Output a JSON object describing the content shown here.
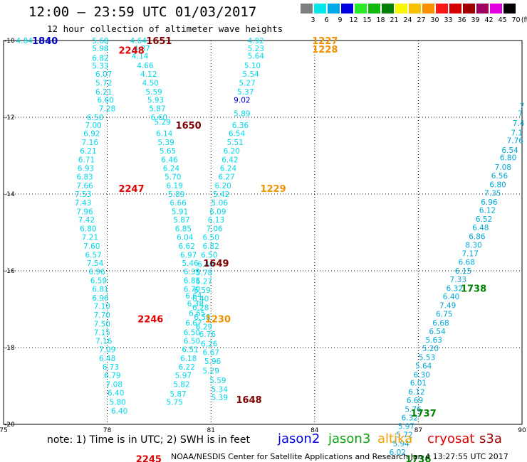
{
  "header": {
    "title": "12:00 – 23:59 UTC 01/03/2017",
    "subtitle": "12 hour collection of altimeter wave heights"
  },
  "legend": {
    "unit": "(ft)",
    "items": [
      {
        "label": "3",
        "color": "#808080"
      },
      {
        "label": "6",
        "color": "#00e8e8"
      },
      {
        "label": "9",
        "color": "#00a8e8"
      },
      {
        "label": "12",
        "color": "#0000e0"
      },
      {
        "label": "15",
        "color": "#28e828"
      },
      {
        "label": "18",
        "color": "#10b810"
      },
      {
        "label": "21",
        "color": "#008000"
      },
      {
        "label": "24",
        "color": "#f8f800"
      },
      {
        "label": "27",
        "color": "#f8c000"
      },
      {
        "label": "30",
        "color": "#f89000"
      },
      {
        "label": "33",
        "color": "#f81818"
      },
      {
        "label": "36",
        "color": "#d00000"
      },
      {
        "label": "39",
        "color": "#a00000"
      },
      {
        "label": "42",
        "color": "#a00060"
      },
      {
        "label": "45",
        "color": "#e000e0"
      },
      {
        "label": "70",
        "color": "#000000"
      }
    ]
  },
  "axes": {
    "x_ticks": [
      "75",
      "78",
      "81",
      "84",
      "87",
      "90"
    ],
    "y_ticks": [
      "-10",
      "-12",
      "-14",
      "-16",
      "-18",
      "-20"
    ]
  },
  "tracks": [
    {
      "satellite": "altika",
      "color": "#00d8e8",
      "points": [
        {
          "x": 75.6,
          "y": -10.0,
          "v": "4.84"
        }
      ]
    },
    {
      "satellite": "altika",
      "color": "#00d8e8",
      "points": [
        {
          "x": 77.8,
          "y": -10.0,
          "v": "5.68"
        },
        {
          "x": 77.8,
          "y": -10.2,
          "v": "5.98"
        },
        {
          "x": 77.8,
          "y": -10.45,
          "v": "6.82"
        },
        {
          "x": 77.8,
          "y": -10.66,
          "v": "5.33"
        },
        {
          "x": 77.9,
          "y": -10.87,
          "v": "6.07"
        },
        {
          "x": 77.9,
          "y": -11.1,
          "v": "5.72"
        },
        {
          "x": 77.9,
          "y": -11.33,
          "v": "6.21"
        },
        {
          "x": 77.95,
          "y": -11.55,
          "v": "6.60"
        },
        {
          "x": 78.0,
          "y": -11.77,
          "v": "7.28"
        },
        {
          "x": 77.65,
          "y": -12.0,
          "v": "6.50"
        },
        {
          "x": 77.6,
          "y": -12.2,
          "v": "7.00"
        },
        {
          "x": 77.55,
          "y": -12.42,
          "v": "6.92"
        },
        {
          "x": 77.5,
          "y": -12.65,
          "v": "7.16"
        },
        {
          "x": 77.45,
          "y": -12.87,
          "v": "6.21"
        },
        {
          "x": 77.4,
          "y": -13.1,
          "v": "6.71"
        },
        {
          "x": 77.38,
          "y": -13.32,
          "v": "6.93"
        },
        {
          "x": 77.35,
          "y": -13.55,
          "v": "6.83"
        },
        {
          "x": 77.35,
          "y": -13.78,
          "v": "7.66"
        },
        {
          "x": 77.3,
          "y": -14.0,
          "v": "7.53"
        },
        {
          "x": 77.3,
          "y": -14.22,
          "v": "7.43"
        },
        {
          "x": 77.35,
          "y": -14.45,
          "v": "7.96"
        },
        {
          "x": 77.4,
          "y": -14.67,
          "v": "7.42"
        },
        {
          "x": 77.45,
          "y": -14.9,
          "v": "6.80"
        },
        {
          "x": 77.5,
          "y": -15.12,
          "v": "7.21"
        },
        {
          "x": 77.55,
          "y": -15.35,
          "v": "7.60"
        },
        {
          "x": 77.6,
          "y": -15.58,
          "v": "6.57"
        },
        {
          "x": 77.65,
          "y": -15.8,
          "v": "7.54"
        },
        {
          "x": 77.7,
          "y": -16.02,
          "v": "6.96"
        },
        {
          "x": 77.75,
          "y": -16.25,
          "v": "6.59"
        },
        {
          "x": 77.8,
          "y": -16.47,
          "v": "6.81"
        },
        {
          "x": 77.8,
          "y": -16.7,
          "v": "6.96"
        },
        {
          "x": 77.85,
          "y": -16.92,
          "v": "7.10"
        },
        {
          "x": 77.85,
          "y": -17.15,
          "v": "7.70"
        },
        {
          "x": 77.85,
          "y": -17.38,
          "v": "7.50"
        },
        {
          "x": 77.85,
          "y": -17.6,
          "v": "7.15"
        },
        {
          "x": 77.9,
          "y": -17.82,
          "v": "7.16"
        },
        {
          "x": 78.0,
          "y": -18.05,
          "v": "7.09"
        },
        {
          "x": 78.0,
          "y": -18.28,
          "v": "6.48"
        },
        {
          "x": 78.1,
          "y": -18.5,
          "v": "6.73"
        },
        {
          "x": 78.15,
          "y": -18.72,
          "v": "6.79"
        },
        {
          "x": 78.2,
          "y": -18.95,
          "v": "7.08"
        },
        {
          "x": 78.25,
          "y": -19.18,
          "v": "6.40"
        },
        {
          "x": 78.3,
          "y": -19.42,
          "v": "5.80"
        },
        {
          "x": 78.35,
          "y": -19.65,
          "v": "6.40"
        }
      ]
    },
    {
      "satellite": "altika",
      "color": "#00d8e8",
      "points": [
        {
          "x": 78.9,
          "y": -10.0,
          "v": "4.64"
        },
        {
          "x": 79.0,
          "y": -10.2,
          "v": "4.87"
        },
        {
          "x": 78.95,
          "y": -10.4,
          "v": "4.14"
        },
        {
          "x": 79.1,
          "y": -10.65,
          "v": "4.66"
        },
        {
          "x": 79.2,
          "y": -10.87,
          "v": "4.12"
        },
        {
          "x": 79.25,
          "y": -11.1,
          "v": "4.50"
        },
        {
          "x": 79.35,
          "y": -11.33,
          "v": "5.59"
        },
        {
          "x": 79.4,
          "y": -11.55,
          "v": "5.93"
        },
        {
          "x": 79.45,
          "y": -11.77,
          "v": "5.87"
        },
        {
          "x": 79.5,
          "y": -12.0,
          "v": "6.60"
        },
        {
          "x": 79.6,
          "y": -12.12,
          "v": "5.29"
        },
        {
          "x": 79.65,
          "y": -12.42,
          "v": "6.14"
        },
        {
          "x": 79.7,
          "y": -12.65,
          "v": "5.39"
        },
        {
          "x": 79.75,
          "y": -12.87,
          "v": "5.65"
        },
        {
          "x": 79.8,
          "y": -13.1,
          "v": "6.46"
        },
        {
          "x": 79.85,
          "y": -13.32,
          "v": "6.24"
        },
        {
          "x": 79.9,
          "y": -13.55,
          "v": "5.70"
        },
        {
          "x": 79.95,
          "y": -13.78,
          "v": "6.19"
        },
        {
          "x": 80.0,
          "y": -14.0,
          "v": "5.89"
        },
        {
          "x": 80.05,
          "y": -14.22,
          "v": "6.66"
        },
        {
          "x": 80.1,
          "y": -14.45,
          "v": "5.91"
        },
        {
          "x": 80.15,
          "y": -14.67,
          "v": "5.87"
        },
        {
          "x": 80.2,
          "y": -14.9,
          "v": "6.85"
        },
        {
          "x": 80.25,
          "y": -15.12,
          "v": "6.04"
        },
        {
          "x": 80.3,
          "y": -15.35,
          "v": "6.62"
        },
        {
          "x": 80.35,
          "y": -15.58,
          "v": "6.97"
        },
        {
          "x": 80.4,
          "y": -15.8,
          "v": "5.46"
        },
        {
          "x": 80.45,
          "y": -16.02,
          "v": "6.39"
        },
        {
          "x": 80.45,
          "y": -16.25,
          "v": "6.85"
        },
        {
          "x": 80.45,
          "y": -16.47,
          "v": "6.70"
        },
        {
          "x": 80.5,
          "y": -16.65,
          "v": "6.64"
        },
        {
          "x": 80.55,
          "y": -16.85,
          "v": "6.38"
        },
        {
          "x": 80.6,
          "y": -17.1,
          "v": "6.65"
        },
        {
          "x": 80.5,
          "y": -17.35,
          "v": "6.67"
        },
        {
          "x": 80.45,
          "y": -17.6,
          "v": "6.50"
        },
        {
          "x": 80.45,
          "y": -17.82,
          "v": "6.50"
        },
        {
          "x": 80.4,
          "y": -18.05,
          "v": "6.51"
        },
        {
          "x": 80.35,
          "y": -18.28,
          "v": "6.18"
        },
        {
          "x": 80.3,
          "y": -18.5,
          "v": "6.22"
        },
        {
          "x": 80.2,
          "y": -18.72,
          "v": "5.97"
        },
        {
          "x": 80.15,
          "y": -18.95,
          "v": "5.82"
        },
        {
          "x": 80.05,
          "y": -19.2,
          "v": "5.87"
        },
        {
          "x": 79.95,
          "y": -19.42,
          "v": "5.75"
        }
      ]
    },
    {
      "satellite": "altika",
      "color": "#00d8e8",
      "points": [
        {
          "x": 82.3,
          "y": -10.0,
          "v": "4.92"
        },
        {
          "x": 82.3,
          "y": -10.2,
          "v": "5.23"
        },
        {
          "x": 82.3,
          "y": -10.4,
          "v": "5.64"
        },
        {
          "x": 82.2,
          "y": -10.65,
          "v": "5.10"
        },
        {
          "x": 82.15,
          "y": -10.87,
          "v": "5.54"
        },
        {
          "x": 82.05,
          "y": -11.1,
          "v": "5.27"
        },
        {
          "x": 82.0,
          "y": -11.33,
          "v": "5.37"
        },
        {
          "x": 81.9,
          "y": -11.55,
          "v": "9.02",
          "c": "#0000d0"
        },
        {
          "x": 81.9,
          "y": -11.9,
          "v": "5.89"
        },
        {
          "x": 81.85,
          "y": -12.2,
          "v": "6.36"
        },
        {
          "x": 81.75,
          "y": -12.42,
          "v": "6.54"
        },
        {
          "x": 81.7,
          "y": -12.65,
          "v": "5.51"
        },
        {
          "x": 81.6,
          "y": -12.87,
          "v": "6.20"
        },
        {
          "x": 81.55,
          "y": -13.1,
          "v": "6.42"
        },
        {
          "x": 81.5,
          "y": -13.32,
          "v": "6.24"
        },
        {
          "x": 81.45,
          "y": -13.55,
          "v": "6.27"
        },
        {
          "x": 81.35,
          "y": -13.78,
          "v": "6.20"
        },
        {
          "x": 81.3,
          "y": -14.0,
          "v": "5.42"
        },
        {
          "x": 81.25,
          "y": -14.22,
          "v": "5.06"
        },
        {
          "x": 81.2,
          "y": -14.45,
          "v": "6.09"
        },
        {
          "x": 81.15,
          "y": -14.67,
          "v": "6.13"
        },
        {
          "x": 81.1,
          "y": -14.9,
          "v": "7.06"
        },
        {
          "x": 81.0,
          "y": -15.12,
          "v": "6.50"
        },
        {
          "x": 81.0,
          "y": -15.35,
          "v": "6.82"
        },
        {
          "x": 80.95,
          "y": -15.58,
          "v": "6.50"
        },
        {
          "x": 80.85,
          "y": -15.82,
          "v": "6.40"
        },
        {
          "x": 80.8,
          "y": -16.05,
          "v": "5.78"
        },
        {
          "x": 80.8,
          "y": -16.27,
          "v": "6.27"
        },
        {
          "x": 80.75,
          "y": -16.5,
          "v": "6.59"
        },
        {
          "x": 80.7,
          "y": -16.72,
          "v": "6.40"
        },
        {
          "x": 80.7,
          "y": -16.95,
          "v": "6.28"
        },
        {
          "x": 80.75,
          "y": -17.2,
          "v": "6.58"
        },
        {
          "x": 80.8,
          "y": -17.45,
          "v": "6.29"
        },
        {
          "x": 80.9,
          "y": -17.65,
          "v": "6.76"
        },
        {
          "x": 80.95,
          "y": -17.9,
          "v": "6.26"
        },
        {
          "x": 81.0,
          "y": -18.12,
          "v": "6.67"
        },
        {
          "x": 81.05,
          "y": -18.35,
          "v": "5.96"
        },
        {
          "x": 81.0,
          "y": -18.6,
          "v": "5.29"
        },
        {
          "x": 81.2,
          "y": -18.85,
          "v": "5.59"
        },
        {
          "x": 81.25,
          "y": -19.08,
          "v": "5.34"
        },
        {
          "x": 81.25,
          "y": -19.3,
          "v": "5.39"
        }
      ]
    },
    {
      "satellite": "altika",
      "color": "#00a8d8",
      "points": [
        {
          "x": 90.0,
          "y": -11.7,
          "v": "7"
        },
        {
          "x": 89.95,
          "y": -11.9,
          "v": "7"
        },
        {
          "x": 89.9,
          "y": -12.15,
          "v": "7.4"
        },
        {
          "x": 89.85,
          "y": -12.4,
          "v": "7.1"
        },
        {
          "x": 89.8,
          "y": -12.6,
          "v": "7.76"
        },
        {
          "x": 89.65,
          "y": -12.85,
          "v": "6.54"
        },
        {
          "x": 89.6,
          "y": -13.05,
          "v": "6.80"
        },
        {
          "x": 89.45,
          "y": -13.3,
          "v": "7.08"
        },
        {
          "x": 89.35,
          "y": -13.52,
          "v": "6.56"
        },
        {
          "x": 89.3,
          "y": -13.75,
          "v": "6.80"
        },
        {
          "x": 89.15,
          "y": -13.97,
          "v": "7.35"
        },
        {
          "x": 89.05,
          "y": -14.2,
          "v": "6.96"
        },
        {
          "x": 89.0,
          "y": -14.42,
          "v": "6.12"
        },
        {
          "x": 88.9,
          "y": -14.65,
          "v": "6.52"
        },
        {
          "x": 88.8,
          "y": -14.87,
          "v": "6.48"
        },
        {
          "x": 88.7,
          "y": -15.1,
          "v": "6.86"
        },
        {
          "x": 88.6,
          "y": -15.32,
          "v": "8.30"
        },
        {
          "x": 88.5,
          "y": -15.55,
          "v": "7.17"
        },
        {
          "x": 88.4,
          "y": -15.77,
          "v": "6.68"
        },
        {
          "x": 88.3,
          "y": -16.0,
          "v": "6.15"
        },
        {
          "x": 88.15,
          "y": -16.22,
          "v": "7.33"
        },
        {
          "x": 88.05,
          "y": -16.45,
          "v": "6.32"
        },
        {
          "x": 87.95,
          "y": -16.67,
          "v": "6.40"
        },
        {
          "x": 87.85,
          "y": -16.9,
          "v": "7.49"
        },
        {
          "x": 87.75,
          "y": -17.12,
          "v": "6.75"
        },
        {
          "x": 87.65,
          "y": -17.35,
          "v": "6.68"
        },
        {
          "x": 87.55,
          "y": -17.57,
          "v": "6.54"
        },
        {
          "x": 87.45,
          "y": -17.8,
          "v": "5.63"
        },
        {
          "x": 87.35,
          "y": -18.02,
          "v": "5.20"
        },
        {
          "x": 87.25,
          "y": -18.25,
          "v": "5.53"
        },
        {
          "x": 87.15,
          "y": -18.47,
          "v": "5.64"
        },
        {
          "x": 87.1,
          "y": -18.7,
          "v": "6.30"
        },
        {
          "x": 87.0,
          "y": -18.92,
          "v": "6.01"
        },
        {
          "x": 86.95,
          "y": -19.15,
          "v": "6.12"
        },
        {
          "x": 86.9,
          "y": -19.37,
          "v": "6.69"
        },
        {
          "x": 86.85,
          "y": -19.6,
          "v": "5.76"
        },
        {
          "x": 86.75,
          "y": -19.82,
          "v": "6.32"
        },
        {
          "x": 86.65,
          "y": -20.05,
          "v": "5.97"
        },
        {
          "x": 86.6,
          "y": -20.27,
          "v": "5.72"
        },
        {
          "x": 86.5,
          "y": -20.5,
          "v": "5.94"
        },
        {
          "x": 86.4,
          "y": -20.72,
          "v": "6.02"
        }
      ]
    }
  ],
  "time_labels": [
    {
      "x": 76.2,
      "y": -10.0,
      "t": "1840",
      "color": "#0000c0"
    },
    {
      "x": 78.7,
      "y": -10.25,
      "t": "2248",
      "color": "#e00000"
    },
    {
      "x": 79.5,
      "y": -10.0,
      "t": "1651",
      "color": "#800000"
    },
    {
      "x": 84.3,
      "y": -10.0,
      "t": "1227",
      "color": "#f09000"
    },
    {
      "x": 84.3,
      "y": -10.22,
      "t": "1228",
      "color": "#f09000"
    },
    {
      "x": 80.35,
      "y": -12.2,
      "t": "1650",
      "color": "#800000"
    },
    {
      "x": 78.7,
      "y": -13.85,
      "t": "2247",
      "color": "#e00000"
    },
    {
      "x": 82.8,
      "y": -13.85,
      "t": "1229",
      "color": "#f09000"
    },
    {
      "x": 81.15,
      "y": -15.8,
      "t": "1649",
      "color": "#800000"
    },
    {
      "x": 79.25,
      "y": -17.25,
      "t": "2246",
      "color": "#e00000"
    },
    {
      "x": 81.2,
      "y": -17.25,
      "t": "1230",
      "color": "#f09000"
    },
    {
      "x": 82.1,
      "y": -19.35,
      "t": "1648",
      "color": "#800000"
    },
    {
      "x": 88.6,
      "y": -16.45,
      "t": "1738",
      "color": "#008000"
    },
    {
      "x": 87.15,
      "y": -19.7,
      "t": "1737",
      "color": "#008000"
    },
    {
      "x": 87.0,
      "y": -20.9,
      "t": "1736",
      "color": "#008000"
    },
    {
      "x": 79.2,
      "y": -20.9,
      "t": "2245",
      "color": "#e00000"
    }
  ],
  "footer": {
    "note": "note: 1) Time is in UTC; 2) SWH is in feet",
    "satellites": [
      {
        "name": "jason2",
        "color": "#0000e0"
      },
      {
        "name": "jason3",
        "color": "#10a010"
      },
      {
        "name": "altika",
        "color": "#f0a000"
      },
      {
        "name": "cryosat",
        "color": "#e00000"
      },
      {
        "name": "s3a",
        "color": "#a00000"
      }
    ],
    "credit": "NOAA/NESDIS Center for Satellite Applications and Research    Jan  4 13:27:55 UTC 2017"
  }
}
